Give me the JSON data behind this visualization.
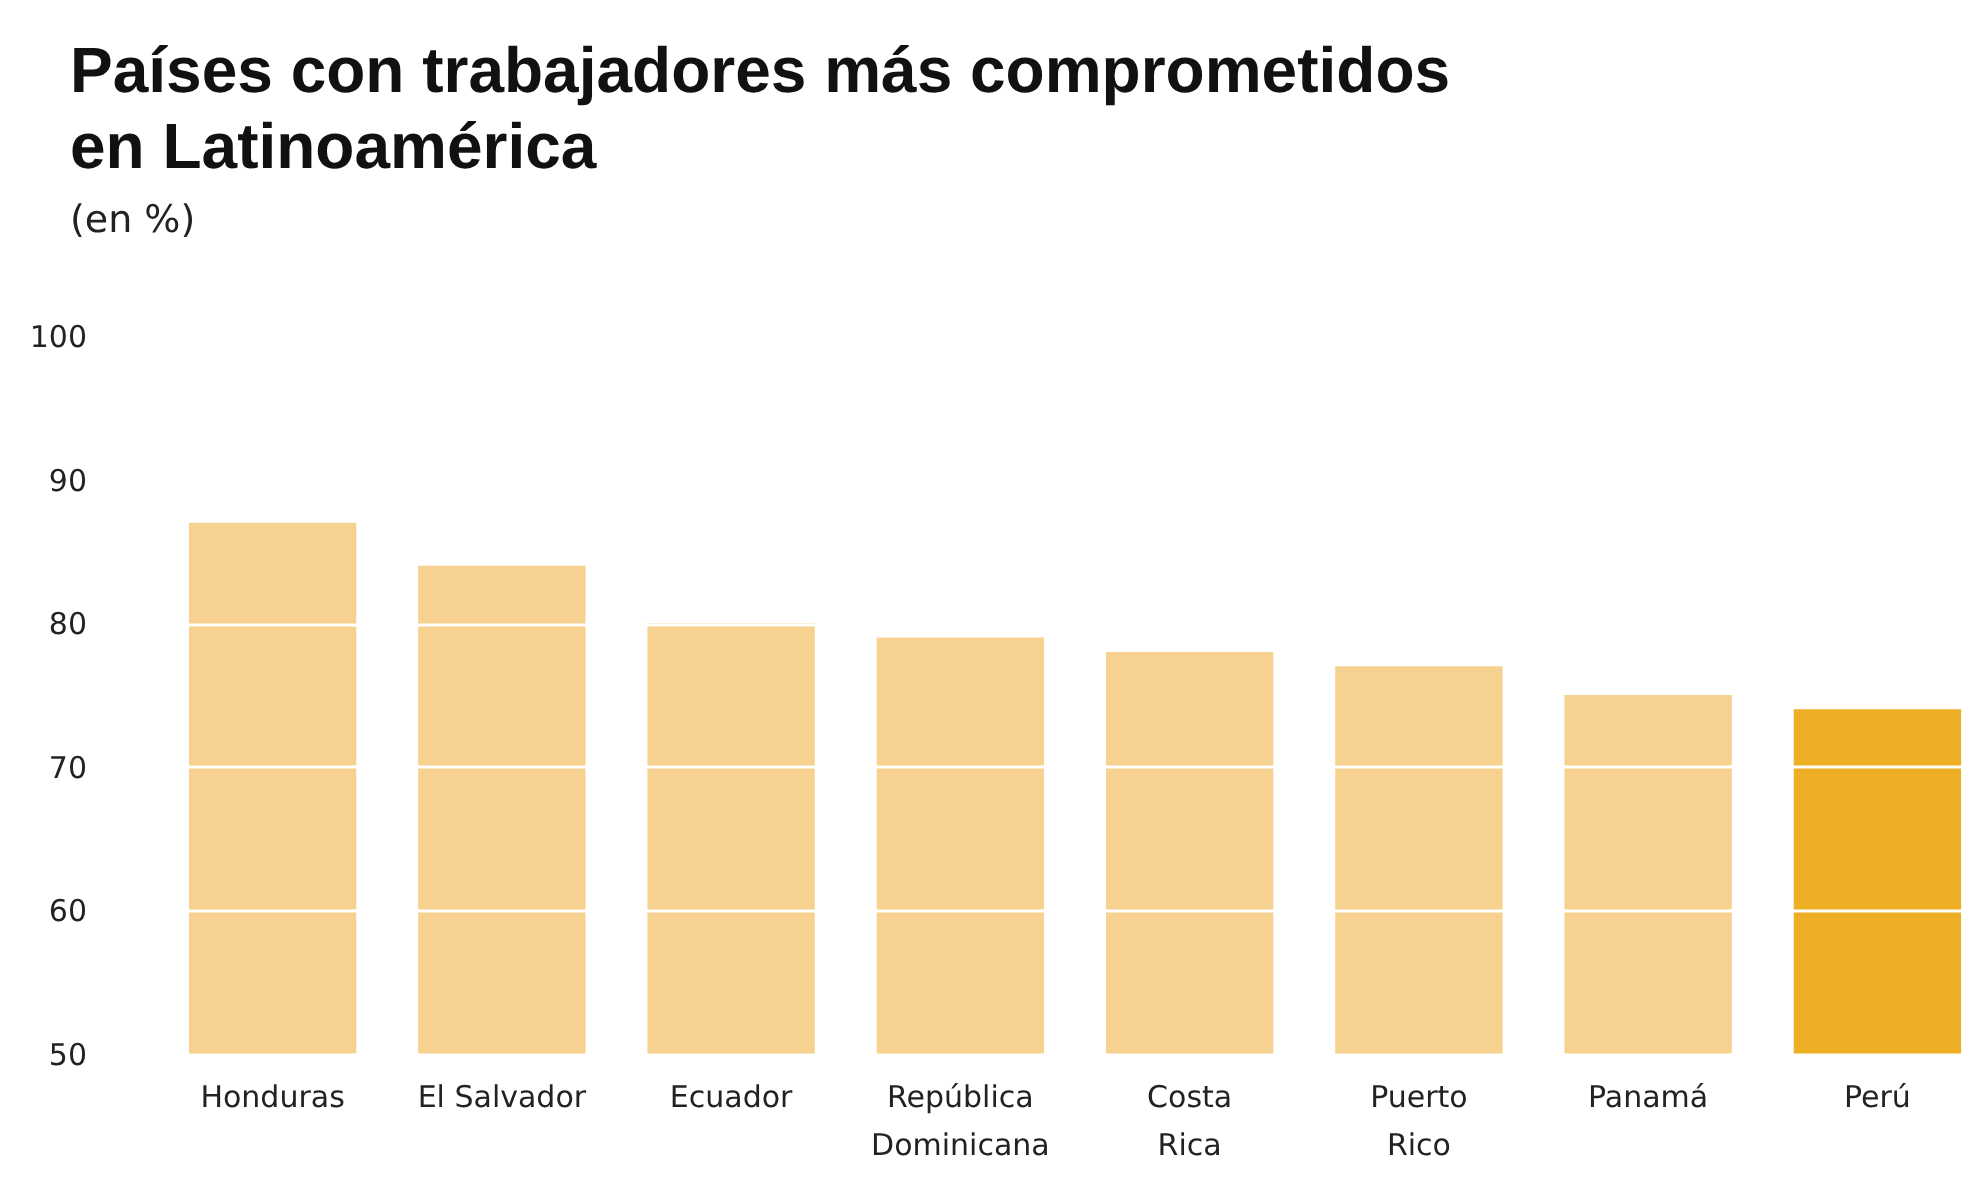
{
  "chart_data": {
    "type": "bar",
    "title": "Países con trabajadores más comprometidos\nen Latinoamérica",
    "subtitle": "(en %)",
    "categories": [
      "Honduras",
      "El Salvador",
      "Ecuador",
      "República\nDominicana",
      "Costa\nRica",
      "Puerto\nRico",
      "Panamá",
      "Perú"
    ],
    "values": [
      87,
      84,
      80,
      79,
      78,
      77,
      75,
      74
    ],
    "colors": [
      "#f6d18f",
      "#f6d18f",
      "#f6d18f",
      "#f6d18f",
      "#f6d18f",
      "#f6d18f",
      "#f6d18f",
      "#ecaf25"
    ],
    "ylim": [
      50,
      100
    ],
    "yticks": [
      50,
      60,
      70,
      80,
      90,
      100
    ],
    "grid": "y"
  }
}
